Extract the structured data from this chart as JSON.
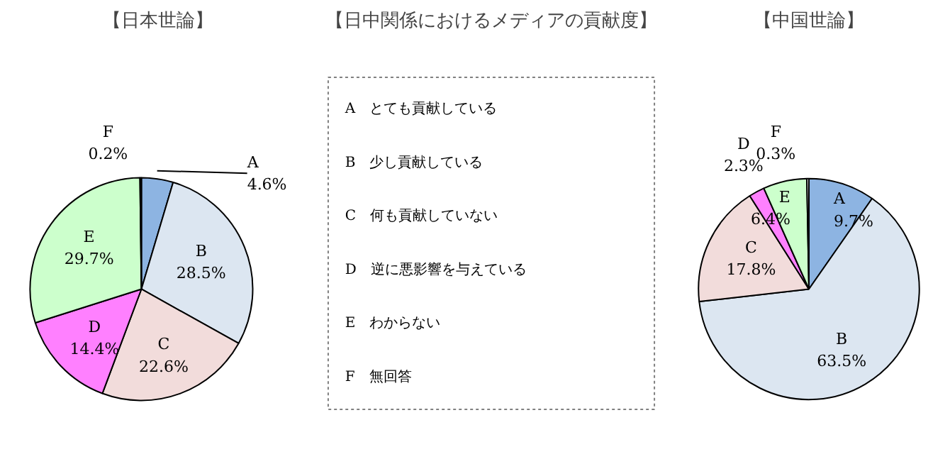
{
  "chart_data": [
    {
      "type": "pie",
      "title": "【日本世論】",
      "categories": [
        "A",
        "B",
        "C",
        "D",
        "E",
        "F"
      ],
      "values": [
        4.6,
        28.5,
        22.6,
        14.4,
        29.7,
        0.2
      ],
      "value_labels": [
        "4.6%",
        "28.5%",
        "22.6%",
        "14.4%",
        "29.7%",
        "0.2%"
      ],
      "colors": [
        "#8db4e2",
        "#dce6f1",
        "#f2dcdb",
        "#ff80ff",
        "#ccffcc",
        "#ffffff"
      ]
    },
    {
      "type": "other",
      "title": "【日中関係におけるメディアの貢献度】",
      "annotations": [
        "A　とても貢献している",
        "B　少し貢献している",
        "C　何も貢献していない",
        "D　逆に悪影響を与えている",
        "E　わからない",
        "F　無回答"
      ]
    },
    {
      "type": "pie",
      "title": "【中国世論】",
      "categories": [
        "A",
        "B",
        "C",
        "D",
        "E",
        "F"
      ],
      "values": [
        9.7,
        63.5,
        17.8,
        2.3,
        6.4,
        0.3
      ],
      "value_labels": [
        "9.7%",
        "63.5%",
        "17.8%",
        "2.3%",
        "6.4%",
        "0.3%"
      ],
      "colors": [
        "#8db4e2",
        "#dce6f1",
        "#f2dcdb",
        "#ff80ff",
        "#ccffcc",
        "#ffffff"
      ]
    }
  ]
}
